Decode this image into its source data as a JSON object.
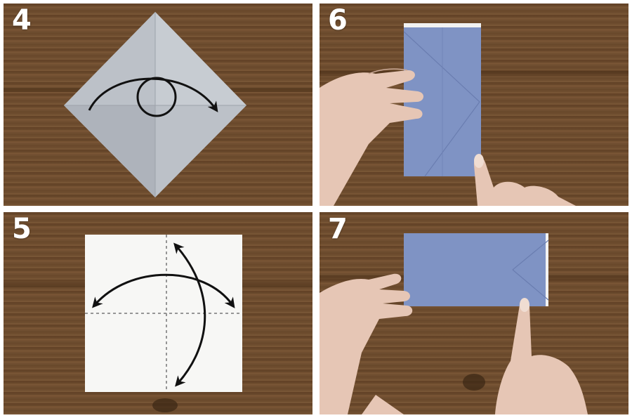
{
  "image": {
    "description_type": "origami folding instructions photo grid",
    "background_color": "#ffffff",
    "wood_color": "#6b4a2c",
    "paper_blue": "#7f93c4",
    "paper_grey": "#b9bec6",
    "paper_white": "#f7f7f5",
    "skin_color": "#e8c8b8"
  },
  "steps": [
    {
      "number": "4",
      "paper": "grey-diamond",
      "gesture": "arrow-fold-over"
    },
    {
      "number": "6",
      "paper": "blue-rectangle-vertical",
      "gesture": "hands-folding"
    },
    {
      "number": "5",
      "paper": "white-square-dashed-lines",
      "gesture": "arrows-fold-both"
    },
    {
      "number": "7",
      "paper": "blue-rectangle-horizontal",
      "gesture": "hands-pressing"
    }
  ]
}
